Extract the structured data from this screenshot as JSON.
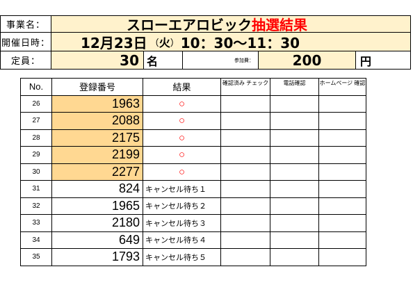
{
  "header": {
    "event_label": "事業名：",
    "event_name": "スローエアロビック",
    "event_suffix": "抽選結果",
    "date_label": "開催日時：",
    "date_value": "12月23日",
    "weekday_open": "（",
    "weekday": "火",
    "weekday_close": "）",
    "time_value": "10：30～11：30",
    "capacity_label": "定員：",
    "capacity_value": "30",
    "capacity_unit": "名",
    "fee_label": "参加費：",
    "fee_value": "200",
    "fee_unit": "円"
  },
  "table": {
    "columns": [
      "No.",
      "登録番号",
      "結果",
      "確認済み チェック",
      "電話確認",
      "ホームページ 確認"
    ],
    "rows": [
      {
        "no": "26",
        "reg": "1963",
        "result": "○",
        "highlight": true
      },
      {
        "no": "27",
        "reg": "2088",
        "result": "○",
        "highlight": true
      },
      {
        "no": "28",
        "reg": "2175",
        "result": "○",
        "highlight": true
      },
      {
        "no": "29",
        "reg": "2199",
        "result": "○",
        "highlight": true
      },
      {
        "no": "30",
        "reg": "2277",
        "result": "○",
        "highlight": true
      },
      {
        "no": "31",
        "reg": "824",
        "result": "キャンセル待ち１",
        "highlight": false
      },
      {
        "no": "32",
        "reg": "1965",
        "result": "キャンセル待ち２",
        "highlight": false
      },
      {
        "no": "33",
        "reg": "2180",
        "result": "キャンセル待ち３",
        "highlight": false
      },
      {
        "no": "34",
        "reg": "649",
        "result": "キャンセル待ち４",
        "highlight": false
      },
      {
        "no": "35",
        "reg": "1793",
        "result": "キャンセル待ち５",
        "highlight": false
      }
    ]
  },
  "colors": {
    "highlight": "#ffd892",
    "header_bg": "#fff2cc",
    "accent_red": "#ff0000"
  }
}
